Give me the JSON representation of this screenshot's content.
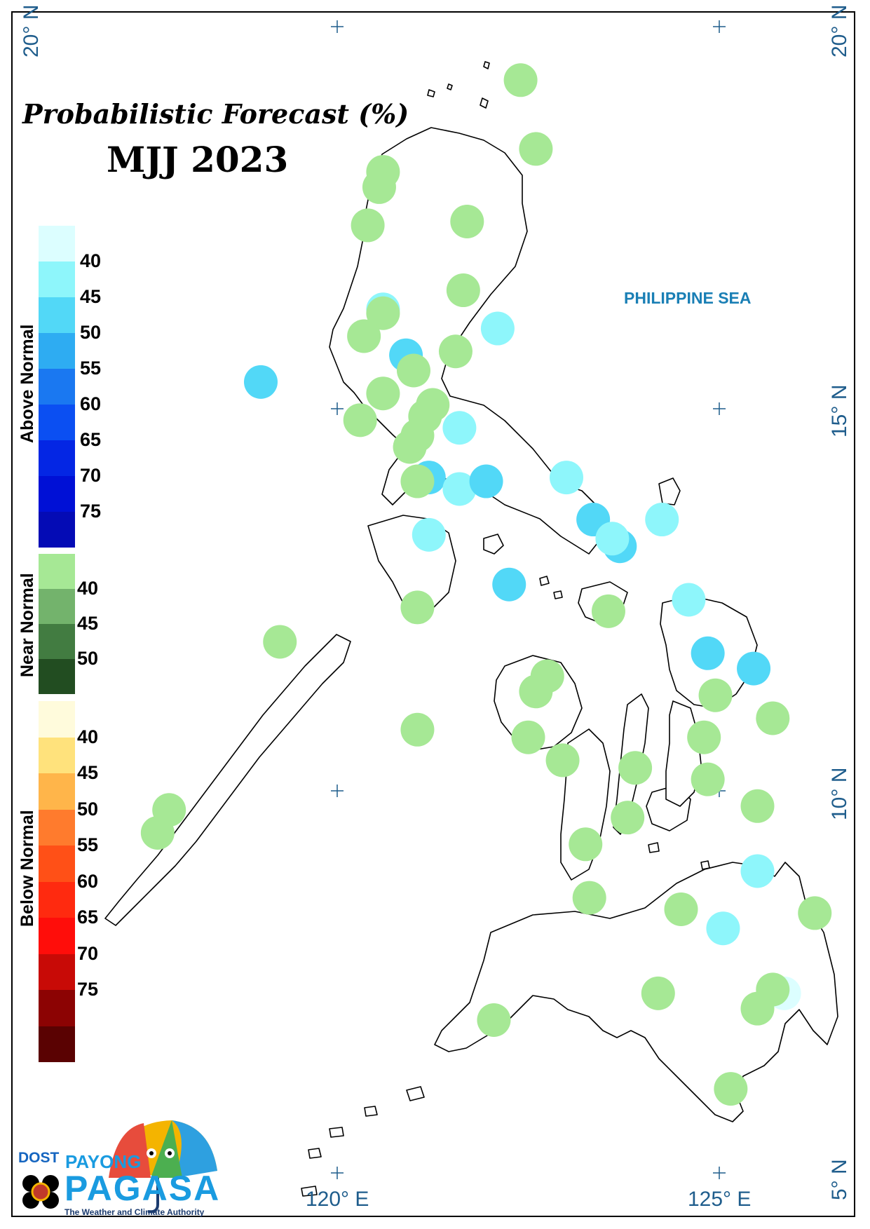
{
  "title": {
    "line1": "Probabilistic Forecast (%)",
    "line2": "MJJ 2023"
  },
  "sea_label": "PHILIPPINE SEA",
  "coordinates": {
    "lat_20_left": "20° N",
    "lat_20_right": "20° N",
    "lat_15": "15° N",
    "lat_10": "10° N",
    "lat_5": "5° N",
    "lon_120": "120° E",
    "lon_125": "125° E"
  },
  "legend": {
    "above_normal": {
      "title": "Above Normal",
      "ticks": [
        "40",
        "45",
        "50",
        "55",
        "60",
        "65",
        "70",
        "75"
      ],
      "colors": [
        "#dcfeff",
        "#8ef6fb",
        "#52d8f7",
        "#2eacf2",
        "#1a78f1",
        "#0b4ff2",
        "#0426e4",
        "#0010d6",
        "#040bb5"
      ]
    },
    "near_normal": {
      "title": "Near Normal",
      "ticks": [
        "40",
        "45",
        "50"
      ],
      "colors": [
        "#a6e895",
        "#73b36c",
        "#427c41",
        "#224d21"
      ]
    },
    "below_normal": {
      "title": "Below Normal",
      "ticks": [
        "40",
        "45",
        "50",
        "55",
        "60",
        "65",
        "70",
        "75"
      ],
      "colors": [
        "#fffbdc",
        "#ffe27c",
        "#ffb54a",
        "#ff7b2d",
        "#ff5017",
        "#ff2a0f",
        "#ff0d0a",
        "#c80a06",
        "#8c0303",
        "#5a0202"
      ]
    }
  },
  "logo": {
    "dost": "DOST",
    "payong": "PAYONG",
    "pagasa": "PAGASA",
    "tagline": "The Weather and Climate Authority"
  },
  "stations": [
    {
      "lon": 122.4,
      "lat": 19.3,
      "color": "near-40"
    },
    {
      "lon": 122.6,
      "lat": 18.4,
      "color": "near-40"
    },
    {
      "lon": 120.6,
      "lat": 18.1,
      "color": "near-40"
    },
    {
      "lon": 120.55,
      "lat": 17.9,
      "color": "near-40"
    },
    {
      "lon": 120.4,
      "lat": 17.4,
      "color": "near-40"
    },
    {
      "lon": 121.7,
      "lat": 17.45,
      "color": "near-40"
    },
    {
      "lon": 121.65,
      "lat": 16.55,
      "color": "near-40"
    },
    {
      "lon": 120.6,
      "lat": 16.3,
      "color": "above-40"
    },
    {
      "lon": 120.6,
      "lat": 16.25,
      "color": "near-40"
    },
    {
      "lon": 122.1,
      "lat": 16.05,
      "color": "above-40"
    },
    {
      "lon": 120.35,
      "lat": 15.95,
      "color": "near-40"
    },
    {
      "lon": 120.9,
      "lat": 15.7,
      "color": "above-50"
    },
    {
      "lon": 121.55,
      "lat": 15.75,
      "color": "near-40"
    },
    {
      "lon": 121.0,
      "lat": 15.5,
      "color": "near-40"
    },
    {
      "lon": 119.0,
      "lat": 15.35,
      "color": "above-50"
    },
    {
      "lon": 120.6,
      "lat": 15.2,
      "color": "near-40"
    },
    {
      "lon": 121.25,
      "lat": 15.05,
      "color": "near-40"
    },
    {
      "lon": 121.15,
      "lat": 14.9,
      "color": "near-40"
    },
    {
      "lon": 120.3,
      "lat": 14.85,
      "color": "near-40"
    },
    {
      "lon": 121.6,
      "lat": 14.75,
      "color": "above-40"
    },
    {
      "lon": 120.95,
      "lat": 14.5,
      "color": "near-40"
    },
    {
      "lon": 121.05,
      "lat": 14.65,
      "color": "near-40"
    },
    {
      "lon": 121.2,
      "lat": 14.1,
      "color": "above-50"
    },
    {
      "lon": 121.05,
      "lat": 14.05,
      "color": "near-40"
    },
    {
      "lon": 121.6,
      "lat": 13.95,
      "color": "above-40"
    },
    {
      "lon": 121.95,
      "lat": 14.05,
      "color": "above-50"
    },
    {
      "lon": 123.0,
      "lat": 14.1,
      "color": "above-40"
    },
    {
      "lon": 123.35,
      "lat": 13.55,
      "color": "above-50"
    },
    {
      "lon": 124.25,
      "lat": 13.55,
      "color": "above-40"
    },
    {
      "lon": 123.7,
      "lat": 13.2,
      "color": "above-50"
    },
    {
      "lon": 123.6,
      "lat": 13.3,
      "color": "above-40"
    },
    {
      "lon": 121.2,
      "lat": 13.35,
      "color": "above-40"
    },
    {
      "lon": 122.25,
      "lat": 12.7,
      "color": "above-50"
    },
    {
      "lon": 121.05,
      "lat": 12.4,
      "color": "near-40"
    },
    {
      "lon": 123.55,
      "lat": 12.35,
      "color": "near-40"
    },
    {
      "lon": 124.6,
      "lat": 12.5,
      "color": "above-40"
    },
    {
      "lon": 119.25,
      "lat": 11.95,
      "color": "near-40"
    },
    {
      "lon": 124.85,
      "lat": 11.8,
      "color": "above-50"
    },
    {
      "lon": 125.45,
      "lat": 11.6,
      "color": "above-50"
    },
    {
      "lon": 122.75,
      "lat": 11.5,
      "color": "near-40"
    },
    {
      "lon": 122.6,
      "lat": 11.3,
      "color": "near-40"
    },
    {
      "lon": 124.95,
      "lat": 11.25,
      "color": "near-40"
    },
    {
      "lon": 125.7,
      "lat": 10.95,
      "color": "near-40"
    },
    {
      "lon": 121.05,
      "lat": 10.8,
      "color": "near-40"
    },
    {
      "lon": 122.5,
      "lat": 10.7,
      "color": "near-40"
    },
    {
      "lon": 124.8,
      "lat": 10.7,
      "color": "near-40"
    },
    {
      "lon": 122.95,
      "lat": 10.4,
      "color": "near-40"
    },
    {
      "lon": 123.9,
      "lat": 10.3,
      "color": "near-40"
    },
    {
      "lon": 124.85,
      "lat": 10.15,
      "color": "near-40"
    },
    {
      "lon": 125.5,
      "lat": 9.8,
      "color": "near-40"
    },
    {
      "lon": 117.8,
      "lat": 9.75,
      "color": "near-40"
    },
    {
      "lon": 117.65,
      "lat": 9.45,
      "color": "near-40"
    },
    {
      "lon": 123.8,
      "lat": 9.65,
      "color": "near-40"
    },
    {
      "lon": 123.25,
      "lat": 9.3,
      "color": "near-40"
    },
    {
      "lon": 125.5,
      "lat": 8.95,
      "color": "above-40"
    },
    {
      "lon": 123.3,
      "lat": 8.6,
      "color": "near-40"
    },
    {
      "lon": 124.5,
      "lat": 8.45,
      "color": "near-40"
    },
    {
      "lon": 126.25,
      "lat": 8.4,
      "color": "near-40"
    },
    {
      "lon": 125.05,
      "lat": 8.2,
      "color": "above-40"
    },
    {
      "lon": 124.2,
      "lat": 7.35,
      "color": "near-40"
    },
    {
      "lon": 125.85,
      "lat": 7.35,
      "color": "above-35"
    },
    {
      "lon": 125.7,
      "lat": 7.4,
      "color": "near-40"
    },
    {
      "lon": 125.5,
      "lat": 7.15,
      "color": "near-40"
    },
    {
      "lon": 122.05,
      "lat": 7.0,
      "color": "near-40"
    },
    {
      "lon": 125.15,
      "lat": 6.1,
      "color": "near-40"
    }
  ]
}
